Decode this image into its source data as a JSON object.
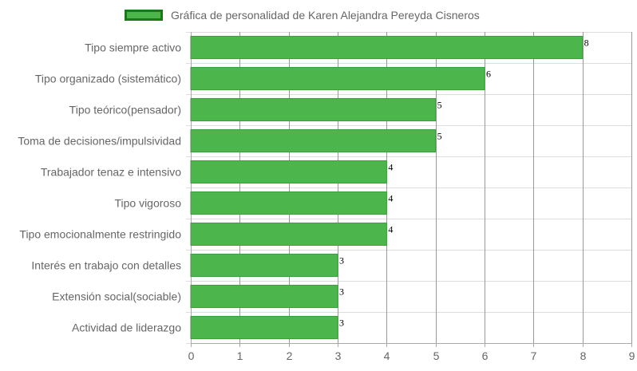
{
  "chart_data": {
    "type": "bar",
    "orientation": "horizontal",
    "categories": [
      "Tipo siempre activo",
      "Tipo organizado (sistemático)",
      "Tipo teórico(pensador)",
      "Toma de decisiones/impulsividad",
      "Trabajador tenaz e intensivo",
      "Tipo vigoroso",
      "Tipo emocionalmente restringido",
      "Interés en trabajo con detalles",
      "Extensión social(sociable)",
      "Actividad de liderazgo"
    ],
    "series": [
      {
        "name": "Gráfica de personalidad de Karen Alejandra Pereyda Cisneros",
        "values": [
          8,
          6,
          5,
          5,
          4,
          4,
          4,
          3,
          3,
          3
        ]
      }
    ],
    "xlim": [
      0,
      9
    ],
    "x_ticks": [
      "0",
      "1",
      "2",
      "3",
      "4",
      "5",
      "6",
      "7",
      "8",
      "9"
    ],
    "data_labels": [
      "8",
      "6",
      "5",
      "5",
      "4",
      "4",
      "4",
      "3",
      "3",
      "3"
    ],
    "grid": true,
    "legend_position": "top",
    "colors": {
      "bar_fill": "#4cb54c",
      "legend_border": "#1a7a1a",
      "grid": "#dddddd",
      "major_grid": "#999999",
      "text": "#666666"
    }
  }
}
